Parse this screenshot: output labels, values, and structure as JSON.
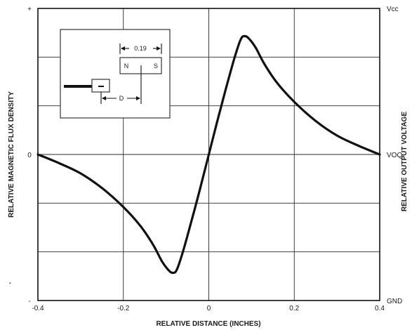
{
  "chart_data": {
    "type": "line",
    "title": "",
    "xlabel": "RELATIVE DISTANCE (INCHES)",
    "ylabel_left": "RELATIVE MAGNETIC FLUX DENSITY",
    "ylabel_right": "RELATIVE OUTPUT VOLTAGE",
    "xlim": [
      -0.4,
      0.4
    ],
    "ylim": [
      -1,
      1
    ],
    "x_ticks": [
      {
        "value": -0.4,
        "label": "-0.4"
      },
      {
        "value": -0.2,
        "label": "-0.2"
      },
      {
        "value": 0,
        "label": "0"
      },
      {
        "value": 0.2,
        "label": "0.2"
      },
      {
        "value": 0.4,
        "label": "0.4"
      }
    ],
    "y_ticks_left": [
      {
        "value": 1,
        "label": "+"
      },
      {
        "value": 0,
        "label": "0"
      },
      {
        "value": -1,
        "label": "-"
      }
    ],
    "y_ticks_right": [
      {
        "value": 1,
        "label": "Vcc"
      },
      {
        "value": 0,
        "label": "VOQ"
      },
      {
        "value": -1,
        "label": "GND"
      }
    ],
    "grid": true,
    "series": [
      {
        "x": [
          -0.4,
          -0.35,
          -0.3,
          -0.25,
          -0.2,
          -0.16,
          -0.13,
          -0.11,
          -0.095,
          -0.085,
          -0.075,
          -0.06,
          -0.04,
          -0.02,
          0.0,
          0.02,
          0.04,
          0.06,
          0.075,
          0.085,
          0.095,
          0.11,
          0.13,
          0.16,
          0.2,
          0.25,
          0.3,
          0.35,
          0.4
        ],
        "y": [
          0.0,
          -0.06,
          -0.13,
          -0.23,
          -0.36,
          -0.49,
          -0.62,
          -0.73,
          -0.79,
          -0.81,
          -0.79,
          -0.66,
          -0.45,
          -0.23,
          0.0,
          0.23,
          0.45,
          0.66,
          0.79,
          0.81,
          0.79,
          0.73,
          0.62,
          0.49,
          0.36,
          0.23,
          0.13,
          0.06,
          0.0
        ]
      }
    ]
  },
  "inset": {
    "dimension_label": "0.19",
    "pole_north": "N",
    "pole_south": "S",
    "distance_label": "D"
  }
}
